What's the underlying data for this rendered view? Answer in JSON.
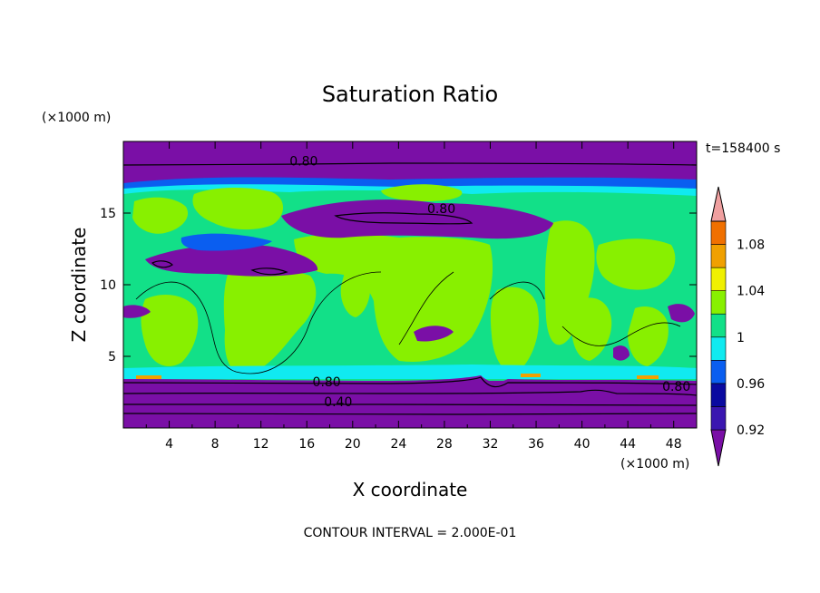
{
  "chart_data": {
    "type": "heatmap",
    "title": "Saturation Ratio",
    "time_label": "t=158400 s",
    "xlabel": "X coordinate",
    "ylabel": "Z coordinate",
    "x_unit": "(×1000 m)",
    "y_unit": "(×1000 m)",
    "footer": "CONTOUR INTERVAL = 2.000E-01",
    "xlim": [
      0,
      50
    ],
    "ylim": [
      0,
      20
    ],
    "x_ticks": [
      4,
      8,
      12,
      16,
      20,
      24,
      28,
      32,
      36,
      40,
      44,
      48
    ],
    "y_ticks": [
      5,
      10,
      15
    ],
    "colorbar": {
      "levels": [
        0.92,
        0.94,
        0.96,
        0.98,
        1.0,
        1.02,
        1.04,
        1.06,
        1.08,
        1.1
      ],
      "colors": [
        "#7a0fa6",
        "#3a16b0",
        "#0a0aa0",
        "#0a5ef0",
        "#10eaf0",
        "#12e088",
        "#88f000",
        "#f0f000",
        "#f0a000",
        "#f07000",
        "#f02020",
        "#f0a0a0"
      ],
      "labels": [
        {
          "value": 0.92,
          "text": "0.92"
        },
        {
          "value": 0.96,
          "text": "0.96"
        },
        {
          "value": 1.0,
          "text": "1"
        },
        {
          "value": 1.04,
          "text": "1.04"
        },
        {
          "value": 1.08,
          "text": "1.08"
        }
      ]
    },
    "contour_labels": [
      {
        "x": 14.5,
        "z": 18.5,
        "text": "0.80"
      },
      {
        "x": 26.5,
        "z": 15.2,
        "text": "0.80"
      },
      {
        "x": 16.5,
        "z": 3.1,
        "text": "0.80"
      },
      {
        "x": 47.0,
        "z": 2.8,
        "text": "0.80"
      },
      {
        "x": 17.5,
        "z": 1.7,
        "text": "0.40"
      }
    ],
    "grid": false,
    "legend": "right"
  }
}
